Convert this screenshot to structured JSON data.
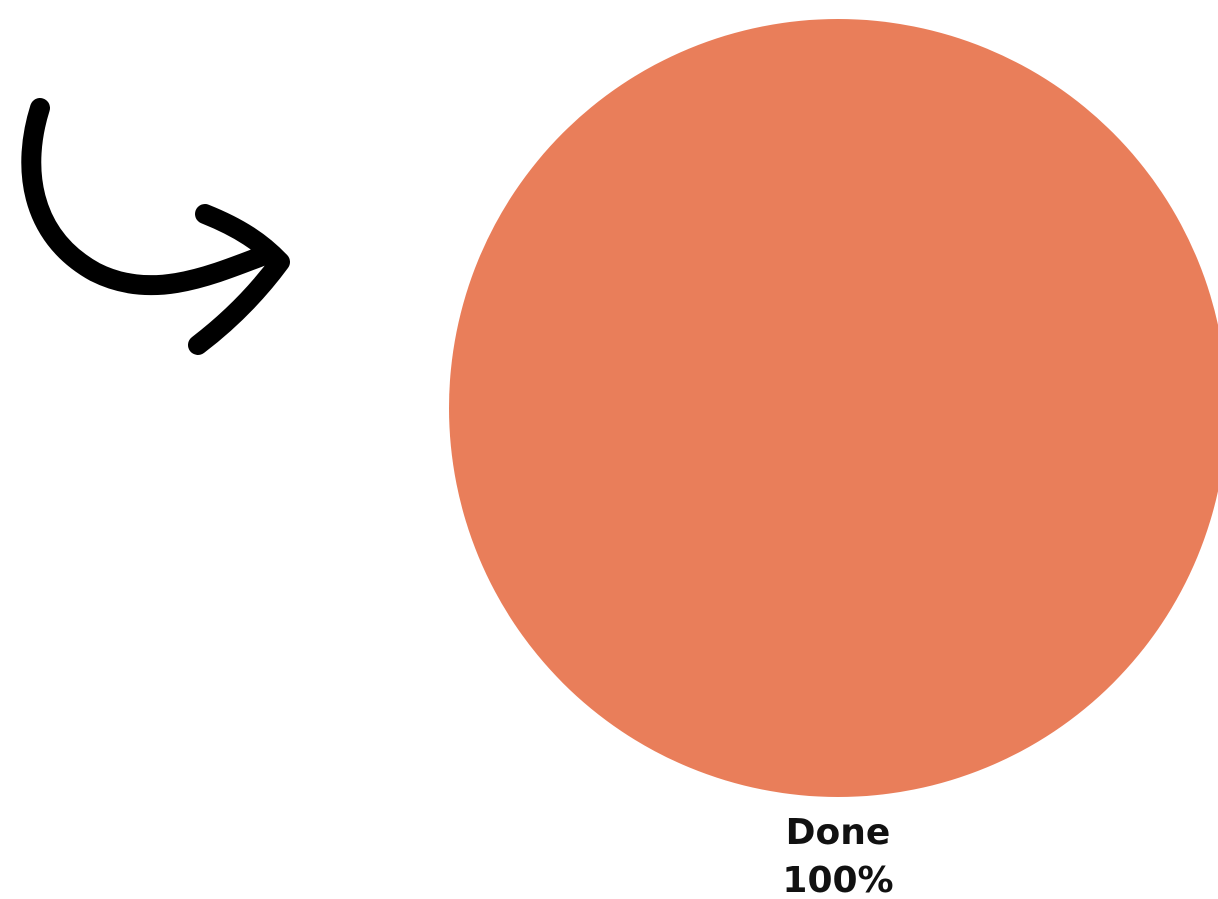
{
  "chart_data": {
    "type": "pie",
    "categories": [
      "Done"
    ],
    "values": [
      100
    ],
    "value_labels": [
      "100%"
    ],
    "colors": [
      "#e97e5a"
    ]
  }
}
